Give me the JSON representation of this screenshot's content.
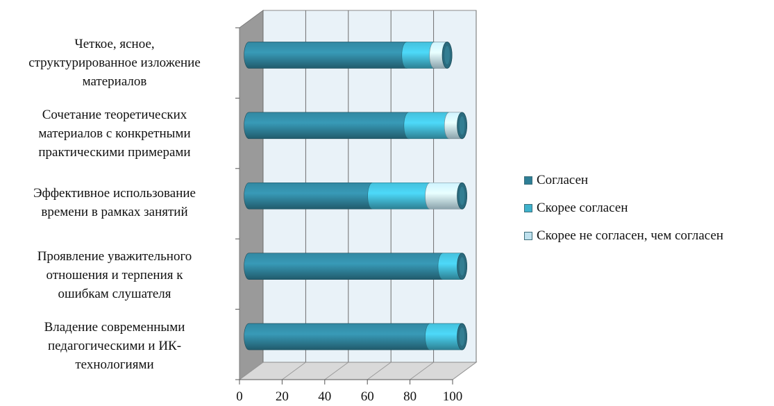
{
  "chart_data": {
    "type": "bar",
    "orientation": "horizontal",
    "three_d": true,
    "categories": [
      "Четкое, ясное,\nструктурированное изложение\nматериалов",
      "Сочетание теоретических\nматериалов с конкретными\nпрактическими примерами",
      "Эффективное использование\nвремени в рамках занятий",
      "Проявление уважительного\nотношения и терпения к\nошибкам слушателя",
      "Владение современными\nпедагогическими и ИК-\nтехнологиями"
    ],
    "series": [
      {
        "name": "Согласен",
        "color": "#2e7e96",
        "values": [
          74,
          75,
          58,
          91,
          85
        ]
      },
      {
        "name": "Скорее согласен",
        "color": "#3fb2cc",
        "values": [
          13,
          19,
          27,
          9,
          15
        ]
      },
      {
        "name": "Скорее не согласен, чем согласен",
        "color": "#bfe1ee",
        "values": [
          6,
          6,
          15,
          0,
          0
        ]
      }
    ],
    "xticks": [
      "0",
      "20",
      "40",
      "60",
      "80",
      "100"
    ],
    "xlim": [
      0,
      100
    ],
    "stacked": true,
    "grid": true,
    "legend_position": "right"
  }
}
